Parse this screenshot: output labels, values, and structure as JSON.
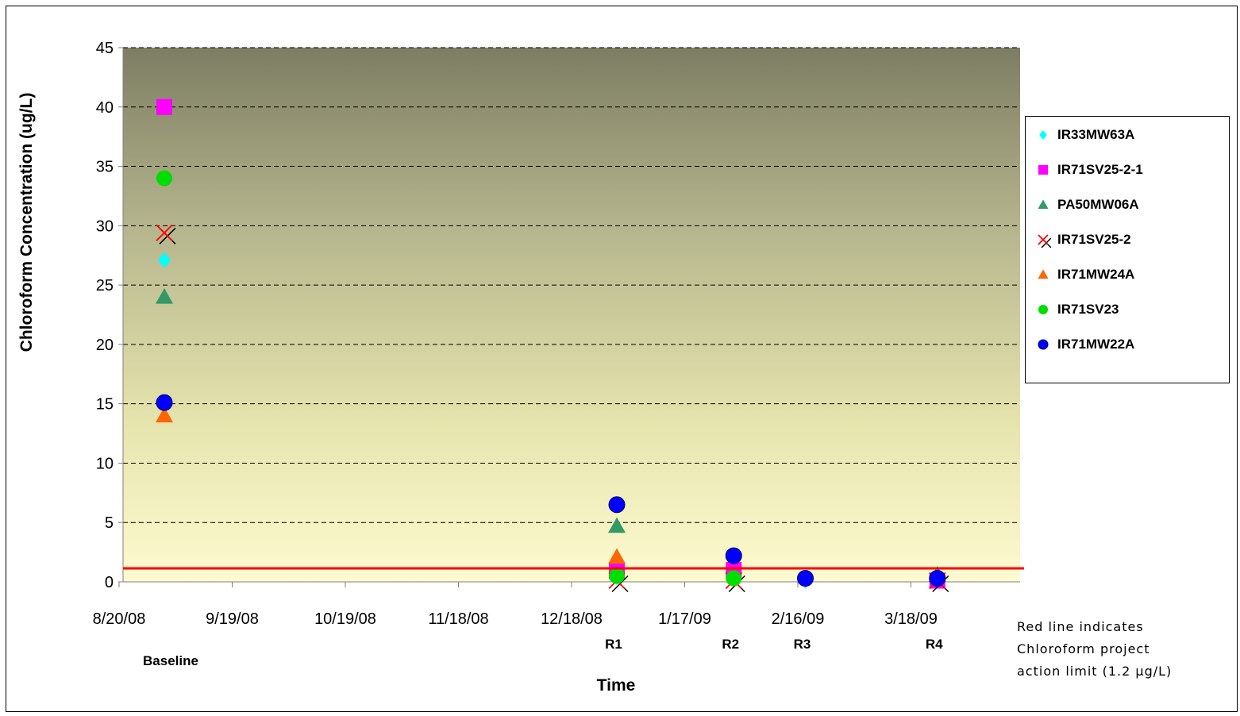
{
  "chart_data": {
    "type": "scatter",
    "xlabel": "Time",
    "ylabel": "Chloroform Concentration (ug/L)",
    "ylim": [
      0,
      45
    ],
    "yticks": [
      0,
      5,
      10,
      15,
      20,
      25,
      30,
      35,
      40,
      45
    ],
    "xlim": [
      "8/20/08",
      "4/17/09"
    ],
    "xticks": [
      "8/20/08",
      "9/19/08",
      "10/19/08",
      "11/18/08",
      "12/18/08",
      "1/17/09",
      "2/16/09",
      "3/18/09"
    ],
    "grid": "horizontal dashed",
    "legend_position": "right",
    "background": "vertical gradient olive-gray to pale yellow",
    "sampling_rounds": [
      {
        "label": "Baseline",
        "date": "9/1/08"
      },
      {
        "label": "R1",
        "date": "12/30/08"
      },
      {
        "label": "R2",
        "date": "1/30/09"
      },
      {
        "label": "R3",
        "date": "2/18/09"
      },
      {
        "label": "R4",
        "date": "3/25/09"
      }
    ],
    "series": [
      {
        "name": "IR33MW63A",
        "marker": "diamond",
        "color": "#00FFFF",
        "points": [
          [
            "9/1/08",
            27.1
          ],
          [
            "12/30/08",
            0.4
          ],
          [
            "1/30/09",
            0.2
          ],
          [
            "2/18/09",
            0.1
          ],
          [
            "3/25/09",
            0.2
          ]
        ]
      },
      {
        "name": "IR71SV25-2-1",
        "marker": "square",
        "color": "#FF00FF",
        "points": [
          [
            "9/1/08",
            40
          ],
          [
            "12/30/08",
            0.9
          ],
          [
            "1/30/09",
            1.0
          ],
          [
            "3/25/09",
            0.1
          ]
        ]
      },
      {
        "name": "PA50MW06A",
        "marker": "triangle",
        "color": "#339966",
        "points": [
          [
            "9/1/08",
            24
          ],
          [
            "12/30/08",
            4.7
          ],
          [
            "3/25/09",
            0.6
          ]
        ]
      },
      {
        "name": "IR71SV25-2",
        "marker": "x",
        "color": "#FF0000",
        "points": [
          [
            "9/1/08",
            29.4
          ],
          [
            "12/30/08",
            0.1
          ],
          [
            "1/30/09",
            0.1
          ],
          [
            "3/25/09",
            0.1
          ]
        ]
      },
      {
        "name": "IR71MW24A",
        "marker": "triangle",
        "color": "#FF6600",
        "points": [
          [
            "9/1/08",
            14
          ],
          [
            "12/30/08",
            2.1
          ]
        ]
      },
      {
        "name": "IR71SV23",
        "marker": "circle",
        "color": "#00DD00",
        "points": [
          [
            "9/1/08",
            34
          ],
          [
            "12/30/08",
            0.5
          ],
          [
            "1/30/09",
            0.3
          ]
        ]
      },
      {
        "name": "IR71MW22A",
        "marker": "circle",
        "color": "#0000FF",
        "points": [
          [
            "9/1/08",
            15.1
          ],
          [
            "12/30/08",
            6.5
          ],
          [
            "1/30/09",
            2.2
          ],
          [
            "2/18/09",
            0.3
          ],
          [
            "3/25/09",
            0.3
          ]
        ]
      }
    ],
    "action_limit": {
      "value": 1.2,
      "color": "#FF0000"
    },
    "annotation": [
      "Red line indicates",
      "Chloroform project",
      "action limit (1.2 µg/L)"
    ]
  }
}
